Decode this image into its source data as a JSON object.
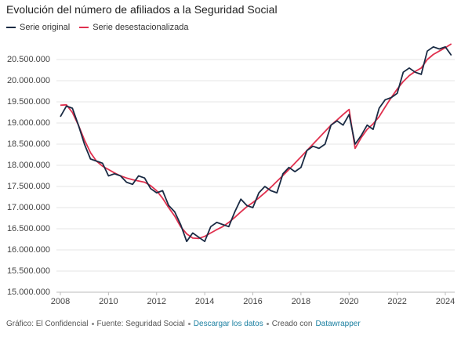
{
  "chart_data": {
    "type": "line",
    "title": "Evolución del número de afiliados a la Seguridad Social",
    "x": [
      2008,
      2008.25,
      2008.5,
      2008.75,
      2009,
      2009.25,
      2009.5,
      2009.75,
      2010,
      2010.25,
      2010.5,
      2010.75,
      2011,
      2011.25,
      2011.5,
      2011.75,
      2012,
      2012.25,
      2012.5,
      2012.75,
      2013,
      2013.25,
      2013.5,
      2013.75,
      2014,
      2014.25,
      2014.5,
      2014.75,
      2015,
      2015.25,
      2015.5,
      2015.75,
      2016,
      2016.25,
      2016.5,
      2016.75,
      2017,
      2017.25,
      2017.5,
      2017.75,
      2018,
      2018.25,
      2018.5,
      2018.75,
      2019,
      2019.25,
      2019.5,
      2019.75,
      2020,
      2020.25,
      2020.5,
      2020.75,
      2021,
      2021.25,
      2021.5,
      2021.75,
      2022,
      2022.25,
      2022.5,
      2022.75,
      2023,
      2023.25,
      2023.5,
      2023.75,
      2024,
      2024.25
    ],
    "series": [
      {
        "name": "Serie original",
        "color": "#1a2b44",
        "values": [
          19150000,
          19400000,
          19350000,
          18950000,
          18500000,
          18150000,
          18100000,
          18050000,
          17750000,
          17800000,
          17750000,
          17600000,
          17550000,
          17750000,
          17700000,
          17450000,
          17350000,
          17400000,
          17050000,
          16900000,
          16600000,
          16200000,
          16400000,
          16300000,
          16200000,
          16550000,
          16650000,
          16600000,
          16550000,
          16900000,
          17200000,
          17050000,
          17000000,
          17350000,
          17500000,
          17400000,
          17350000,
          17800000,
          17950000,
          17850000,
          17950000,
          18350000,
          18450000,
          18400000,
          18500000,
          18950000,
          19050000,
          18950000,
          19200000,
          18500000,
          18700000,
          18950000,
          18850000,
          19350000,
          19550000,
          19600000,
          19700000,
          20200000,
          20300000,
          20200000,
          20150000,
          20700000,
          20800000,
          20750000,
          20800000,
          20600000
        ]
      },
      {
        "name": "Serie desestacionalizada",
        "color": "#e0304e",
        "values": [
          19420000,
          19430000,
          19250000,
          18950000,
          18600000,
          18300000,
          18100000,
          17980000,
          17900000,
          17820000,
          17750000,
          17700000,
          17660000,
          17630000,
          17600000,
          17520000,
          17400000,
          17220000,
          17000000,
          16800000,
          16550000,
          16380000,
          16280000,
          16270000,
          16320000,
          16400000,
          16480000,
          16550000,
          16650000,
          16770000,
          16900000,
          17020000,
          17120000,
          17230000,
          17350000,
          17480000,
          17620000,
          17760000,
          17900000,
          18050000,
          18200000,
          18350000,
          18500000,
          18650000,
          18800000,
          18950000,
          19070000,
          19200000,
          19320000,
          18400000,
          18650000,
          18850000,
          18980000,
          19150000,
          19380000,
          19600000,
          19800000,
          19980000,
          20120000,
          20220000,
          20300000,
          20500000,
          20620000,
          20700000,
          20780000,
          20870000
        ]
      }
    ],
    "xlim": [
      2008,
      2024
    ],
    "xticks": [
      2008,
      2010,
      2012,
      2014,
      2016,
      2018,
      2020,
      2022,
      2024
    ],
    "ylim": [
      15000000,
      21000000
    ],
    "yticks": [
      {
        "value": 15000000,
        "label": "15.000.000"
      },
      {
        "value": 15500000,
        "label": "15.500.000"
      },
      {
        "value": 16000000,
        "label": "16.000.000"
      },
      {
        "value": 16500000,
        "label": "16.500.000"
      },
      {
        "value": 17000000,
        "label": "17.000.000"
      },
      {
        "value": 17500000,
        "label": "17.500.000"
      },
      {
        "value": 18000000,
        "label": "18.000.000"
      },
      {
        "value": 18500000,
        "label": "18.500.000"
      },
      {
        "value": 19000000,
        "label": "19.000.000"
      },
      {
        "value": 19500000,
        "label": "19.500.000"
      },
      {
        "value": 20000000,
        "label": "20.000.000"
      },
      {
        "value": 20500000,
        "label": "20.500.000"
      }
    ],
    "grid": true
  },
  "footer": {
    "credit": "Gráfico: El Confidencial",
    "source": "Fuente: Seguridad Social",
    "download": "Descargar los datos",
    "created": "Creado con",
    "tool": "Datawrapper"
  }
}
